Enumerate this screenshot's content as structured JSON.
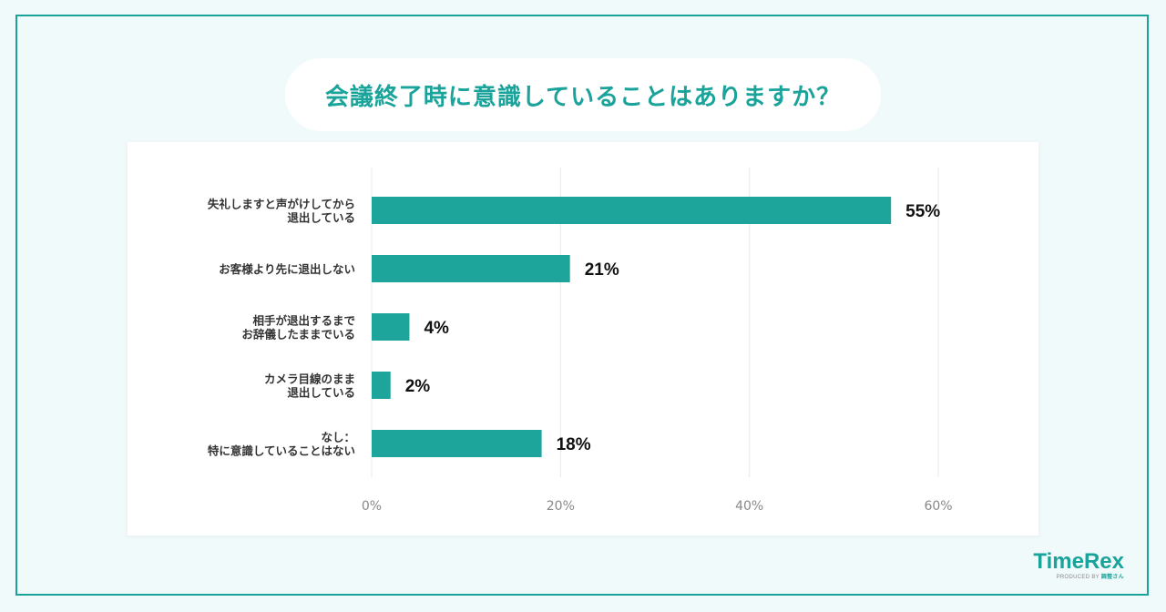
{
  "colors": {
    "accent": "#1aa39a",
    "bar": "#1ea59b",
    "background": "#f1fafa",
    "grid": "#e8e8e8",
    "label_text": "#333333",
    "tick_text": "#888888"
  },
  "chart_data": {
    "type": "bar",
    "orientation": "horizontal",
    "title": "会議終了時に意識していることはありますか？",
    "categories": [
      [
        "失礼しますと声がけしてから",
        "退出している"
      ],
      [
        "お客様より先に退出しない"
      ],
      [
        "相手が退出するまで",
        "お辞儀したままでいる"
      ],
      [
        "カメラ目線のまま",
        "退出している"
      ],
      [
        "なし：",
        "特に意識していることはない"
      ]
    ],
    "values": [
      55,
      21,
      4,
      2,
      18
    ],
    "value_labels": [
      "55%",
      "21%",
      "4%",
      "2%",
      "18%"
    ],
    "xlim": [
      0,
      60
    ],
    "xticks": [
      0,
      20,
      40,
      60
    ],
    "xtick_labels": [
      "0%",
      "20%",
      "40%",
      "60%"
    ],
    "grid": true
  },
  "logo": {
    "name": "TimeRex",
    "tagline_prefix": "PRODUCED BY",
    "tagline_brand": "調整さん"
  }
}
